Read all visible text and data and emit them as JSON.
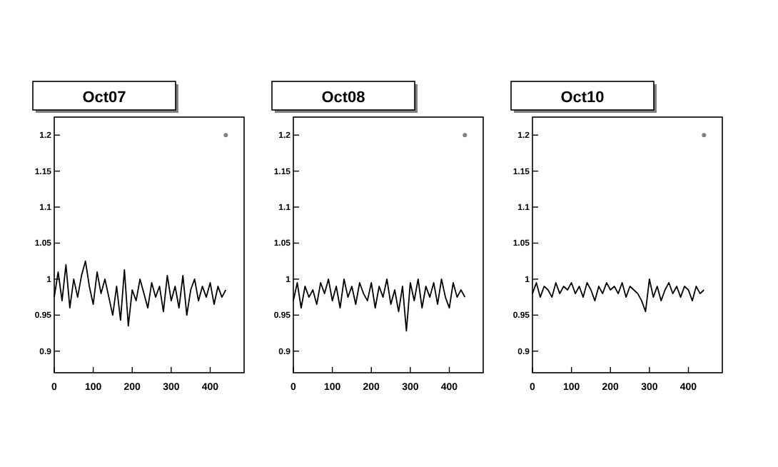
{
  "chart_data": [
    {
      "type": "line",
      "title": "Oct07",
      "x": [
        0,
        10,
        20,
        30,
        40,
        50,
        60,
        70,
        80,
        90,
        100,
        110,
        120,
        130,
        140,
        150,
        160,
        170,
        180,
        190,
        200,
        210,
        220,
        230,
        240,
        250,
        260,
        270,
        280,
        290,
        300,
        310,
        320,
        330,
        340,
        350,
        360,
        370,
        380,
        390,
        400,
        410,
        420,
        430,
        440
      ],
      "xlim": [
        0,
        487
      ],
      "xticks": [
        0,
        100,
        200,
        300,
        400
      ],
      "ylim": [
        0.87,
        1.225
      ],
      "yticks": [
        0.9,
        0.95,
        1,
        1.05,
        1.1,
        1.15,
        1.2
      ],
      "series": [
        {
          "color": "#000000",
          "values": [
            0.975,
            1.01,
            0.97,
            1.02,
            0.96,
            1.0,
            0.975,
            1.005,
            1.025,
            0.99,
            0.965,
            1.01,
            0.98,
            1.0,
            0.975,
            0.95,
            0.99,
            0.943,
            1.013,
            0.935,
            0.985,
            0.97,
            1.0,
            0.98,
            0.96,
            0.995,
            0.975,
            0.99,
            0.955,
            1.005,
            0.97,
            0.99,
            0.96,
            1.005,
            0.95,
            0.985,
            1.0,
            0.97,
            0.99,
            0.975,
            0.995,
            0.965,
            0.99,
            0.975,
            0.985
          ]
        },
        {
          "type": "scatter",
          "color": "#808080",
          "values": [
            null,
            null,
            null,
            null,
            null,
            null,
            null,
            null,
            null,
            null,
            null,
            null,
            null,
            null,
            null,
            null,
            null,
            null,
            null,
            null,
            null,
            null,
            null,
            null,
            null,
            null,
            null,
            null,
            null,
            null,
            null,
            null,
            null,
            null,
            null,
            null,
            null,
            null,
            null,
            null,
            null,
            null,
            null,
            null,
            1.2
          ]
        }
      ]
    },
    {
      "type": "line",
      "title": "Oct08",
      "x": [
        0,
        10,
        20,
        30,
        40,
        50,
        60,
        70,
        80,
        90,
        100,
        110,
        120,
        130,
        140,
        150,
        160,
        170,
        180,
        190,
        200,
        210,
        220,
        230,
        240,
        250,
        260,
        270,
        280,
        290,
        300,
        310,
        320,
        330,
        340,
        350,
        360,
        370,
        380,
        390,
        400,
        410,
        420,
        430,
        440
      ],
      "xlim": [
        0,
        487
      ],
      "xticks": [
        0,
        100,
        200,
        300,
        400
      ],
      "ylim": [
        0.87,
        1.225
      ],
      "yticks": [
        0.9,
        0.95,
        1,
        1.05,
        1.1,
        1.15,
        1.2
      ],
      "series": [
        {
          "color": "#000000",
          "values": [
            0.97,
            0.995,
            0.96,
            0.99,
            0.975,
            0.985,
            0.965,
            0.995,
            0.98,
            1.0,
            0.97,
            0.99,
            0.96,
            1.0,
            0.975,
            0.99,
            0.965,
            0.995,
            0.98,
            0.97,
            0.995,
            0.96,
            0.99,
            0.975,
            1.0,
            0.965,
            0.985,
            0.955,
            0.99,
            0.928,
            0.995,
            0.97,
            1.0,
            0.96,
            0.99,
            0.975,
            0.995,
            0.965,
            1.0,
            0.975,
            0.96,
            0.995,
            0.975,
            0.985,
            0.975
          ]
        },
        {
          "type": "scatter",
          "color": "#808080",
          "values": [
            null,
            null,
            null,
            null,
            null,
            null,
            null,
            null,
            null,
            null,
            null,
            null,
            null,
            null,
            null,
            null,
            null,
            null,
            null,
            null,
            null,
            null,
            null,
            null,
            null,
            null,
            null,
            null,
            null,
            null,
            null,
            null,
            null,
            null,
            null,
            null,
            null,
            null,
            null,
            null,
            null,
            null,
            null,
            null,
            1.2
          ]
        }
      ]
    },
    {
      "type": "line",
      "title": "Oct10",
      "x": [
        0,
        10,
        20,
        30,
        40,
        50,
        60,
        70,
        80,
        90,
        100,
        110,
        120,
        130,
        140,
        150,
        160,
        170,
        180,
        190,
        200,
        210,
        220,
        230,
        240,
        250,
        260,
        270,
        280,
        290,
        300,
        310,
        320,
        330,
        340,
        350,
        360,
        370,
        380,
        390,
        400,
        410,
        420,
        430,
        440
      ],
      "xlim": [
        0,
        487
      ],
      "xticks": [
        0,
        100,
        200,
        300,
        400
      ],
      "ylim": [
        0.87,
        1.225
      ],
      "yticks": [
        0.9,
        0.95,
        1,
        1.05,
        1.1,
        1.15,
        1.2
      ],
      "series": [
        {
          "color": "#000000",
          "values": [
            0.98,
            0.995,
            0.975,
            0.99,
            0.985,
            0.975,
            0.995,
            0.98,
            0.99,
            0.985,
            0.995,
            0.98,
            0.99,
            0.975,
            0.995,
            0.985,
            0.97,
            0.99,
            0.98,
            0.995,
            0.985,
            0.99,
            0.98,
            0.995,
            0.975,
            0.99,
            0.985,
            0.98,
            0.97,
            0.955,
            1.0,
            0.975,
            0.99,
            0.97,
            0.985,
            0.995,
            0.98,
            0.99,
            0.975,
            0.99,
            0.985,
            0.97,
            0.99,
            0.98,
            0.985
          ]
        },
        {
          "type": "scatter",
          "color": "#808080",
          "values": [
            null,
            null,
            null,
            null,
            null,
            null,
            null,
            null,
            null,
            null,
            null,
            null,
            null,
            null,
            null,
            null,
            null,
            null,
            null,
            null,
            null,
            null,
            null,
            null,
            null,
            null,
            null,
            null,
            null,
            null,
            null,
            null,
            null,
            null,
            null,
            null,
            null,
            null,
            null,
            null,
            null,
            null,
            null,
            null,
            1.2
          ]
        }
      ]
    }
  ]
}
